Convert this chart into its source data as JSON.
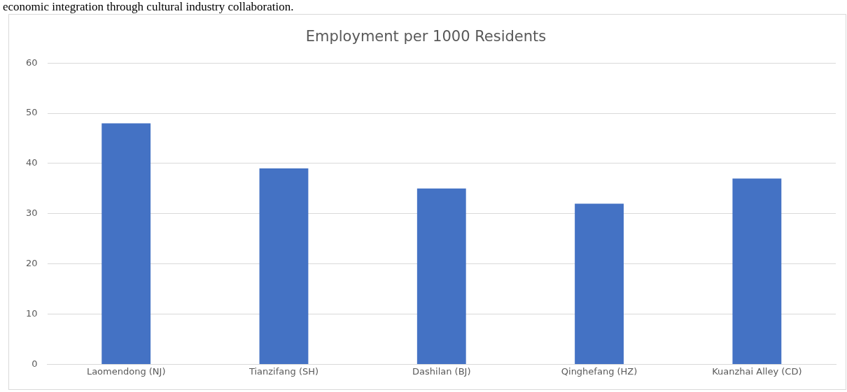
{
  "chart_data": {
    "type": "bar",
    "title": "Employment per 1000 Residents",
    "annotations": [
      "economic integration through cultural industry collaboration."
    ],
    "categories": [
      "Laomendong (NJ)",
      "Tianzifang (SH)",
      "Dashilan (BJ)",
      "Qinghefang (HZ)",
      "Kuanzhai Alley (CD)"
    ],
    "values": [
      48,
      39,
      35,
      32,
      37
    ],
    "color": "#4472c4",
    "ylim": [
      0,
      60
    ],
    "yticks": [
      0,
      10,
      20,
      30,
      40,
      50,
      60
    ],
    "grid": "y"
  }
}
